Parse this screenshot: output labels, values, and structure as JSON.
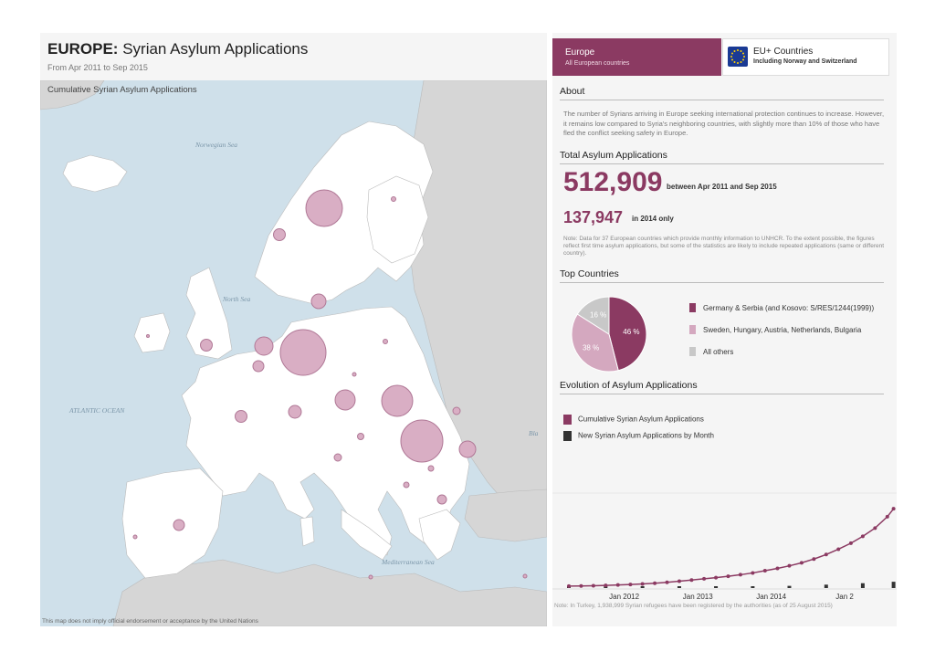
{
  "header": {
    "title_bold": "EUROPE:",
    "title_rest": "Syrian Asylum Applications",
    "subtitle": "From Apr 2011 to Sep 2015"
  },
  "map": {
    "title": "Cumulative Syrian Asylum Applications",
    "disclaimer": "This map does not imply official endorsement or acceptance by the United Nations",
    "sea_labels": {
      "norwegian": "Norwegian Sea",
      "north": "North Sea",
      "atlantic": "ATLANTIC OCEAN",
      "mediterranean": "Mediterranean Sea",
      "black": "Bla"
    }
  },
  "tabs": {
    "europe": {
      "label": "Europe",
      "sub": "All European countries"
    },
    "eu_plus": {
      "label": "EU+ Countries",
      "sub": "Including Norway and Switzerland"
    }
  },
  "about": {
    "heading": "About",
    "text": "The number of Syrians arriving in Europe seeking international protection continues to increase. However, it remains low compared to Syria's neighboring countries, with slightly more than 10% of those who have fled the conflict seeking safety in Europe."
  },
  "totals": {
    "heading": "Total Asylum Applications",
    "total_value": "512,909",
    "total_desc": "between Apr 2011 and Sep 2015",
    "year_value": "137,947",
    "year_desc": "in 2014 only",
    "note": "Note: Data for 37 European countries which provide monthly information to UNHCR. To the extent possible, the figures reflect first time asylum applications, but some of the statistics are likely to include repeated applications (same or different country)."
  },
  "top_countries": {
    "heading": "Top Countries"
  },
  "evolution": {
    "heading": "Evolution of Asylum Applications"
  },
  "footnote": "Note: In Turkey, 1,938,999 Syrian refugees have been registered by the authorities (as of 25 August 2015)",
  "colors": {
    "accent": "#8b3a62",
    "pink": "#d4a8bf",
    "grey": "#c8c8c8",
    "bubble": "#d9aec4",
    "land": "#ffffff",
    "land_other": "#d0d0d0",
    "sea": "#cfe0ea"
  },
  "chart_data": [
    {
      "type": "pie",
      "title": "Top Countries",
      "labels": [
        "Germany & Serbia (and Kosovo: S/RES/1244(1999))",
        "Sweden, Hungary, Austria, Netherlands, Bulgaria",
        "All others"
      ],
      "values": [
        46,
        38,
        16
      ],
      "value_labels": [
        "46 %",
        "38 %",
        "16 %"
      ],
      "colors": [
        "#8b3a62",
        "#d4a8bf",
        "#c8c8c8"
      ]
    },
    {
      "type": "line",
      "title": "Evolution of Asylum Applications",
      "x_tick_labels": [
        "Jan 2012",
        "Jan 2013",
        "Jan 2014",
        "Jan 2"
      ],
      "series": [
        {
          "name": "Cumulative Syrian Asylum Applications",
          "color": "#8b3a62",
          "x": [
            "2011-04",
            "2011-06",
            "2011-08",
            "2011-10",
            "2011-12",
            "2012-02",
            "2012-04",
            "2012-06",
            "2012-08",
            "2012-10",
            "2012-12",
            "2013-02",
            "2013-04",
            "2013-06",
            "2013-08",
            "2013-10",
            "2013-12",
            "2014-02",
            "2014-04",
            "2014-06",
            "2014-08",
            "2014-10",
            "2014-12",
            "2015-02",
            "2015-04",
            "2015-06",
            "2015-08",
            "2015-09"
          ],
          "values": [
            500,
            1500,
            3000,
            5000,
            8000,
            11000,
            15000,
            20000,
            26000,
            33000,
            41000,
            49000,
            57000,
            66000,
            76000,
            88000,
            103000,
            118000,
            135000,
            155000,
            180000,
            210000,
            245000,
            285000,
            330000,
            385000,
            460000,
            512909
          ]
        },
        {
          "name": "New Syrian Asylum Applications by Month",
          "color": "#333333",
          "x": [
            "2011-04",
            "2011-10",
            "2012-04",
            "2012-10",
            "2013-04",
            "2013-10",
            "2014-04",
            "2014-10",
            "2015-04",
            "2015-09"
          ],
          "values": [
            300,
            600,
            1500,
            3500,
            4000,
            6500,
            9000,
            14000,
            20000,
            26000
          ]
        }
      ]
    }
  ]
}
